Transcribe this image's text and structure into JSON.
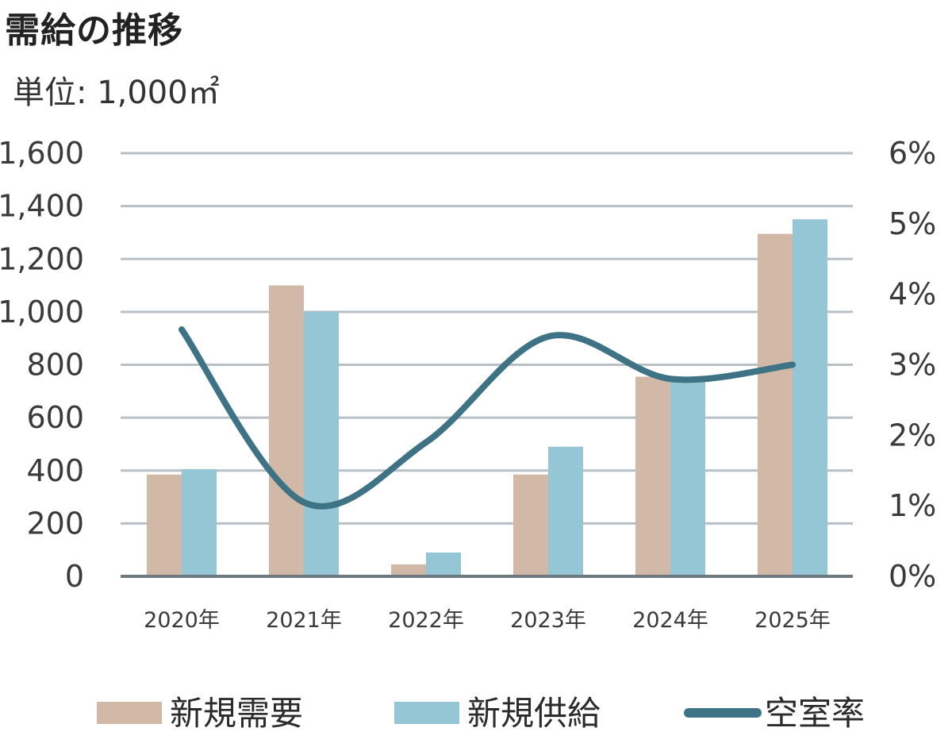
{
  "header": {
    "title": "需給の推移",
    "unit": "単位: 1,000㎡"
  },
  "chart_data": {
    "type": "bar",
    "title": "需給の推移",
    "ylabel": "単位: 1,000㎡",
    "ylim": [
      0,
      1600
    ],
    "yticks": [
      "0",
      "200",
      "400",
      "600",
      "800",
      "1,000",
      "1,200",
      "1,400",
      "1,600"
    ],
    "y2lim": [
      0,
      6
    ],
    "y2ticks": [
      "0%",
      "1%",
      "2%",
      "3%",
      "4%",
      "5%",
      "6%"
    ],
    "categories": [
      "2020年",
      "2021年",
      "2022年",
      "2023年",
      "2024年",
      "2025年"
    ],
    "series": [
      {
        "name": "新規需要",
        "type": "bar",
        "color": "#d2b8a7",
        "values": [
          385,
          1100,
          45,
          385,
          755,
          1295
        ]
      },
      {
        "name": "新規供給",
        "type": "bar",
        "color": "#95c6d5",
        "values": [
          405,
          1000,
          90,
          490,
          745,
          1350
        ]
      },
      {
        "name": "空室率",
        "type": "line",
        "axis": "right",
        "color": "#3d7385",
        "values": [
          3.5,
          1.05,
          1.9,
          3.4,
          2.8,
          3.0
        ]
      }
    ],
    "grid": true,
    "legend_position": "bottom"
  },
  "colors": {
    "grid": "#b8c0c6",
    "baseline": "#6f7a80"
  }
}
